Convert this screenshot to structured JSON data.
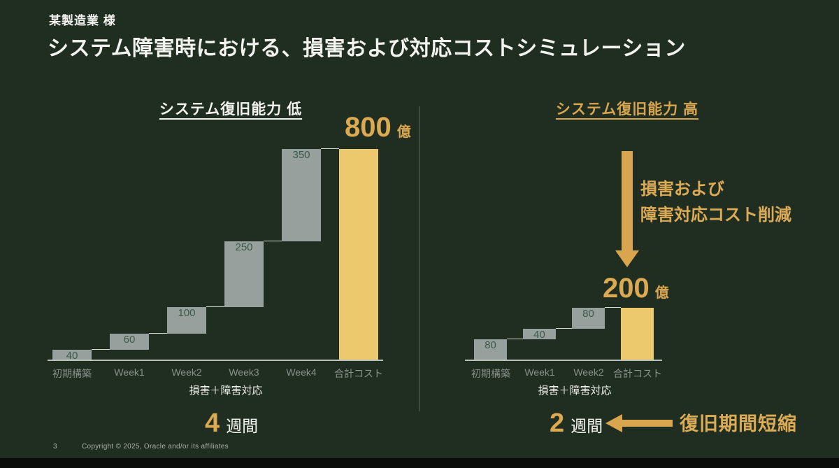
{
  "slide": {
    "client": "某製造業 様",
    "title": "システム障害時における、損害および対応コストシミュレーション"
  },
  "left_section": {
    "heading": "システム復旧能力 低",
    "total_value": "800",
    "total_unit": "億",
    "axis_caption": "損害＋障害対応",
    "duration_value": "4",
    "duration_unit": "週間"
  },
  "right_section": {
    "heading": "システム復旧能力 高",
    "total_value": "200",
    "total_unit": "億",
    "axis_caption": "損害＋障害対応",
    "duration_value": "2",
    "duration_unit": "週間",
    "reduction_line1": "損害および",
    "reduction_line2": "障害対応コスト削減",
    "recovery_note": "復旧期間短縮"
  },
  "footer": {
    "page_number": "3",
    "copyright": "Copyright © 2025, Oracle and/or its affiliates"
  },
  "colors": {
    "background": "#202d21",
    "gold_text": "#d9a64f",
    "gold_bar": "#edc96e",
    "gray_bar": "#96a19e",
    "bar_value_text": "#3d5849",
    "white_text": "#f2f3ef",
    "axis_label": "#87928a",
    "axis_line": "#b8c1b8",
    "divider": "#5a675c",
    "footer_text": "#a9b2a8"
  },
  "chart_data": [
    {
      "type": "bar",
      "subtype": "waterfall",
      "title": "システム復旧能力 低",
      "categories": [
        "初期構築",
        "Week1",
        "Week2",
        "Week3",
        "Week4",
        "合計コスト"
      ],
      "values": [
        40,
        60,
        100,
        250,
        350,
        800
      ],
      "total_category": "合計コスト",
      "total": 800,
      "total_label": "800 億",
      "xlabel": "損害＋障害対応",
      "duration": "4 週間",
      "ylim": [
        0,
        800
      ],
      "grid": false,
      "legend": false
    },
    {
      "type": "bar",
      "subtype": "waterfall",
      "title": "システム復旧能力 高",
      "categories": [
        "初期構築",
        "Week1",
        "Week2",
        "合計コスト"
      ],
      "values": [
        80,
        40,
        80,
        200
      ],
      "total_category": "合計コスト",
      "total": 200,
      "total_label": "200 億",
      "xlabel": "損害＋障害対応",
      "duration": "2 週間",
      "ylim": [
        0,
        800
      ],
      "grid": false,
      "legend": false
    }
  ]
}
